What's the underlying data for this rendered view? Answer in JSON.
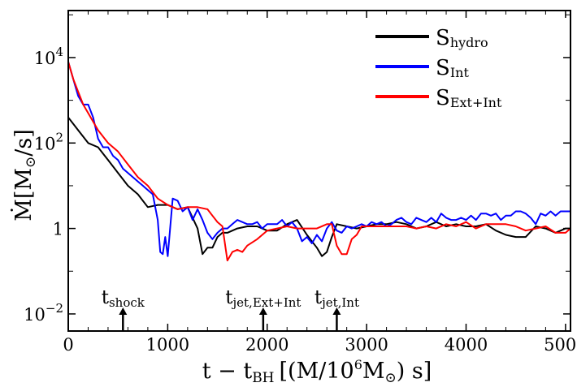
{
  "chart_data": {
    "type": "line",
    "xlabel": "t − t",
    "xlabel_sub": "BH",
    "xlabel_units": "[(M/10",
    "xlabel_units_sup": "6",
    "xlabel_units_tail": "M",
    "xlabel_units_sun": "⊙",
    "xlabel_units_end": ") s]",
    "ylabel_main": "Ṁ[M",
    "ylabel_sun": "⊙",
    "ylabel_end": "/s]",
    "xlim": [
      0,
      5050
    ],
    "ylim_log10": [
      -2.4,
      5.1
    ],
    "y_scale": "log",
    "legend_position": "top-right",
    "x_ticks": [
      {
        "value": 0,
        "label": "0"
      },
      {
        "value": 1000,
        "label": "1000"
      },
      {
        "value": 2000,
        "label": "2000"
      },
      {
        "value": 3000,
        "label": "3000"
      },
      {
        "value": 4000,
        "label": "4000"
      },
      {
        "value": 5000,
        "label": "5000"
      }
    ],
    "y_ticks": [
      {
        "log10": 4,
        "base": "10",
        "exp": "4"
      },
      {
        "log10": 2,
        "base": "10",
        "exp": "2"
      },
      {
        "log10": 0,
        "base": "1",
        "exp": ""
      },
      {
        "log10": -2,
        "base": "10",
        "exp": "−2"
      }
    ],
    "series": [
      {
        "name": "S",
        "name_sub": "hydro",
        "color": "#000000",
        "x": [
          0,
          100,
          200,
          300,
          400,
          500,
          600,
          700,
          800,
          900,
          1000,
          1100,
          1200,
          1300,
          1350,
          1400,
          1450,
          1500,
          1550,
          1600,
          1700,
          1800,
          1900,
          2000,
          2100,
          2200,
          2300,
          2400,
          2500,
          2550,
          2600,
          2650,
          2700,
          2800,
          2900,
          3000,
          3100,
          3200,
          3300,
          3400,
          3500,
          3600,
          3700,
          3800,
          3900,
          4000,
          4100,
          4200,
          4300,
          4400,
          4500,
          4600,
          4700,
          4800,
          4900,
          5000,
          5050
        ],
        "y_log10": [
          2.6,
          2.3,
          2.0,
          1.9,
          1.6,
          1.3,
          1.0,
          0.8,
          0.5,
          0.55,
          0.55,
          0.45,
          0.5,
          0.0,
          -0.6,
          -0.45,
          -0.45,
          -0.2,
          -0.1,
          -0.1,
          0.0,
          0.05,
          0.05,
          -0.05,
          -0.05,
          0.1,
          0.2,
          -0.15,
          -0.45,
          -0.65,
          -0.55,
          -0.2,
          0.1,
          0.05,
          0.0,
          0.05,
          0.1,
          0.1,
          0.15,
          0.1,
          0.0,
          0.05,
          0.15,
          0.05,
          0.1,
          0.05,
          0.05,
          0.1,
          -0.05,
          -0.15,
          -0.2,
          -0.2,
          0.05,
          0.0,
          -0.1,
          0.0,
          0.0
        ]
      },
      {
        "name": "S",
        "name_sub": "Int",
        "color": "#0000ff",
        "x": [
          0,
          50,
          100,
          150,
          200,
          250,
          300,
          350,
          400,
          450,
          500,
          550,
          600,
          650,
          700,
          750,
          800,
          850,
          900,
          925,
          950,
          975,
          1000,
          1050,
          1100,
          1150,
          1200,
          1250,
          1300,
          1350,
          1400,
          1450,
          1500,
          1550,
          1600,
          1650,
          1700,
          1750,
          1800,
          1850,
          1900,
          1950,
          2000,
          2050,
          2100,
          2150,
          2200,
          2250,
          2300,
          2350,
          2400,
          2450,
          2500,
          2550,
          2600,
          2650,
          2700,
          2750,
          2800,
          2850,
          2900,
          2950,
          3000,
          3050,
          3100,
          3150,
          3200,
          3250,
          3300,
          3350,
          3400,
          3450,
          3500,
          3550,
          3600,
          3650,
          3700,
          3750,
          3800,
          3850,
          3900,
          3950,
          4000,
          4050,
          4100,
          4150,
          4200,
          4250,
          4300,
          4350,
          4400,
          4450,
          4500,
          4550,
          4600,
          4650,
          4700,
          4750,
          4800,
          4850,
          4900,
          4950,
          5000,
          5050
        ],
        "y_log10": [
          3.9,
          3.5,
          3.1,
          2.9,
          2.9,
          2.6,
          2.1,
          1.9,
          1.9,
          1.7,
          1.6,
          1.4,
          1.3,
          1.2,
          1.1,
          1.0,
          0.9,
          0.8,
          0.2,
          -0.55,
          -0.6,
          -0.2,
          -0.65,
          0.7,
          0.65,
          0.4,
          0.5,
          0.2,
          0.45,
          0.2,
          -0.1,
          -0.25,
          -0.1,
          0.0,
          0.0,
          0.1,
          0.2,
          0.15,
          0.1,
          0.1,
          0.15,
          0.0,
          0.1,
          0.1,
          0.1,
          0.2,
          0.05,
          0.15,
          0.0,
          -0.3,
          -0.2,
          -0.35,
          -0.15,
          -0.3,
          0.0,
          0.15,
          -0.05,
          -0.1,
          0.05,
          0.0,
          0.05,
          0.1,
          0.05,
          0.15,
          0.1,
          0.15,
          0.05,
          0.1,
          0.2,
          0.25,
          0.15,
          0.1,
          0.25,
          0.2,
          0.15,
          0.25,
          0.15,
          0.35,
          0.25,
          0.2,
          0.2,
          0.25,
          0.2,
          0.3,
          0.2,
          0.35,
          0.35,
          0.3,
          0.35,
          0.2,
          0.3,
          0.3,
          0.4,
          0.4,
          0.35,
          0.25,
          0.1,
          0.35,
          0.3,
          0.4,
          0.3,
          0.4,
          0.4,
          0.4
        ]
      },
      {
        "name": "S",
        "name_sub": "Ext+Int",
        "color": "#ff0000",
        "x": [
          0,
          50,
          100,
          150,
          200,
          300,
          400,
          500,
          600,
          700,
          800,
          900,
          1000,
          1100,
          1200,
          1300,
          1400,
          1450,
          1500,
          1550,
          1600,
          1650,
          1700,
          1750,
          1800,
          1900,
          2000,
          2100,
          2200,
          2300,
          2400,
          2500,
          2600,
          2650,
          2700,
          2750,
          2800,
          2850,
          2900,
          2950,
          3000,
          3100,
          3200,
          3300,
          3400,
          3500,
          3600,
          3700,
          3800,
          3900,
          4000,
          4100,
          4200,
          4300,
          4400,
          4500,
          4600,
          4700,
          4800,
          4900,
          5000,
          5050
        ],
        "y_log10": [
          3.9,
          3.5,
          3.2,
          2.9,
          2.7,
          2.3,
          2.0,
          1.8,
          1.5,
          1.2,
          1.0,
          0.7,
          0.55,
          0.45,
          0.5,
          0.5,
          0.45,
          0.3,
          0.15,
          0.05,
          -0.75,
          -0.55,
          -0.5,
          -0.55,
          -0.4,
          -0.25,
          -0.05,
          0.0,
          0.05,
          0.0,
          0.0,
          0.0,
          0.1,
          0.1,
          -0.4,
          -0.6,
          -0.6,
          -0.25,
          -0.15,
          0.05,
          0.05,
          0.05,
          0.05,
          0.05,
          0.05,
          0.0,
          0.05,
          0.0,
          0.1,
          0.05,
          0.15,
          0.0,
          0.1,
          0.1,
          0.1,
          0.05,
          -0.05,
          0.0,
          0.05,
          -0.1,
          -0.1,
          0.0
        ]
      }
    ],
    "annotations": [
      {
        "text": "t",
        "sub": "shock",
        "x": 550
      },
      {
        "text": "t",
        "sub": "jet,Ext+Int",
        "x": 1960
      },
      {
        "text": "t",
        "sub": "jet,Int",
        "x": 2700
      }
    ]
  }
}
